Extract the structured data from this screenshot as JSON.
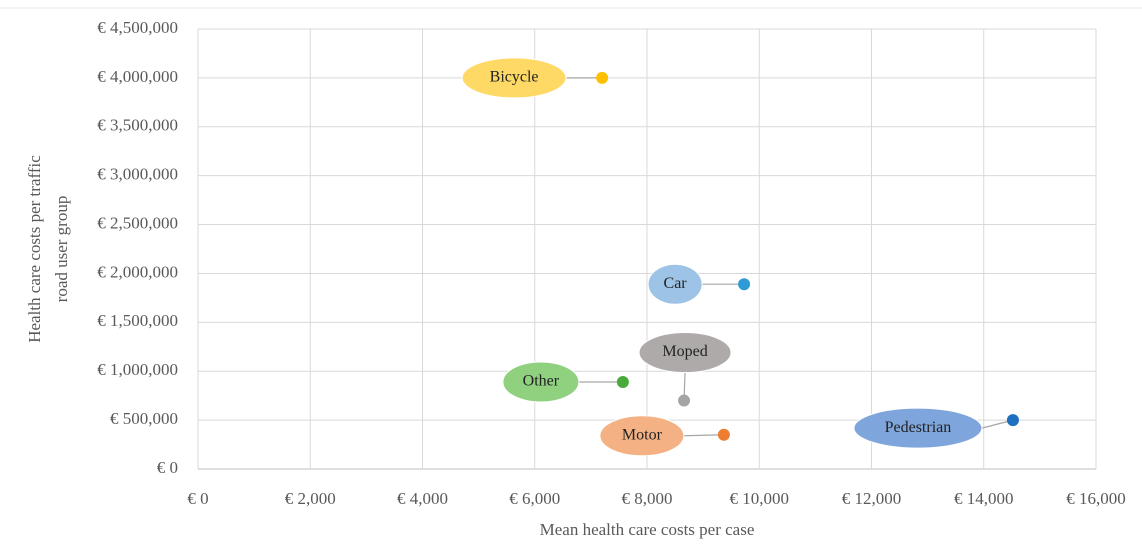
{
  "chart_data": {
    "type": "scatter",
    "xlabel": "Mean health care costs per case",
    "ylabel": [
      "Health care costs per traffic",
      "road user group"
    ],
    "xlim": [
      0,
      16000
    ],
    "xticks": [
      {
        "value": 0,
        "label": "€ 0"
      },
      {
        "value": 2000,
        "label": "€ 2,000"
      },
      {
        "value": 4000,
        "label": "€ 4,000"
      },
      {
        "value": 6000,
        "label": "€ 6,000"
      },
      {
        "value": 8000,
        "label": "€ 8,000"
      },
      {
        "value": 10000,
        "label": "€ 10,000"
      },
      {
        "value": 12000,
        "label": "€ 12,000"
      },
      {
        "value": 14000,
        "label": "€ 14,000"
      },
      {
        "value": 16000,
        "label": "€ 16,000"
      }
    ],
    "ylim": [
      0,
      4500000
    ],
    "yticks": [
      {
        "value": 0,
        "label": "€ 0"
      },
      {
        "value": 500000,
        "label": "€ 500,000"
      },
      {
        "value": 1000000,
        "label": "€ 1,000,000"
      },
      {
        "value": 1500000,
        "label": "€ 1,500,000"
      },
      {
        "value": 2000000,
        "label": "€ 2,000,000"
      },
      {
        "value": 2500000,
        "label": "€ 2,500,000"
      },
      {
        "value": 3000000,
        "label": "€ 3,000,000"
      },
      {
        "value": 3500000,
        "label": "€ 3,500,000"
      },
      {
        "value": 4000000,
        "label": "€ 4,000,000"
      },
      {
        "value": 4500000,
        "label": "€ 4,500,000"
      }
    ],
    "grid": true,
    "series": [
      {
        "name": "Bicycle",
        "color": "#ffc000",
        "label_color": "#ffd966",
        "x": [
          7200
        ],
        "values": [
          4000000
        ]
      },
      {
        "name": "Car",
        "color": "#2e9bd6",
        "label_color": "#9dc3e6",
        "x": [
          9730
        ],
        "values": [
          1890000
        ]
      },
      {
        "name": "Moped",
        "color": "#a5a5a5",
        "label_color": "#aeaaaa",
        "x": [
          8660
        ],
        "values": [
          700000
        ]
      },
      {
        "name": "Other",
        "color": "#4aab3c",
        "label_color": "#8fd17f",
        "x": [
          7570
        ],
        "values": [
          890000
        ]
      },
      {
        "name": "Motor",
        "color": "#ed7d31",
        "label_color": "#f4b183",
        "x": [
          9370
        ],
        "values": [
          350000
        ]
      },
      {
        "name": "Pedestrian",
        "color": "#1f6fc0",
        "label_color": "#7fa6dc",
        "x": [
          14520
        ],
        "values": [
          500000
        ]
      }
    ]
  }
}
